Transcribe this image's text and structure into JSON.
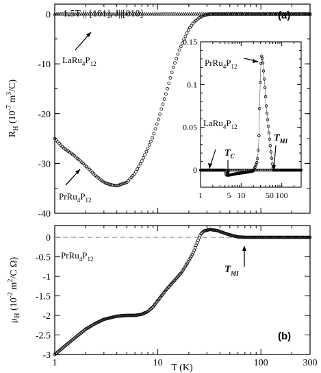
{
  "chart_data": [
    {
      "type": "scatter",
      "panel_label": "(a)",
      "annotation": "1.5T || [101], J||[010]",
      "xscale": "log",
      "xlim": [
        1,
        300
      ],
      "ylim": [
        -40,
        2
      ],
      "ylabel_main": "R",
      "ylabel_sub": "H",
      "ylabel_rest": " (10",
      "ylabel_exp1": "-7",
      "ylabel_mid": " m",
      "ylabel_exp2": "3",
      "ylabel_tail": "/C)",
      "yticks": [
        0,
        -10,
        -20,
        -30,
        -40
      ],
      "ytick_labels": [
        "0",
        "-10",
        "-20",
        "-30",
        "-40"
      ],
      "series": [
        {
          "name": "PrRu4P12",
          "label_parts": [
            "PrRu",
            "4",
            "P",
            "12"
          ],
          "marker": "circle",
          "points": [
            [
              1.0,
              -25.0
            ],
            [
              1.2,
              -26.8
            ],
            [
              1.5,
              -28.2
            ],
            [
              2.0,
              -30.5
            ],
            [
              2.5,
              -32.5
            ],
            [
              3.0,
              -33.8
            ],
            [
              3.5,
              -34.3
            ],
            [
              4.0,
              -34.5
            ],
            [
              5.0,
              -33.8
            ],
            [
              6.0,
              -32.0
            ],
            [
              7.0,
              -29.5
            ],
            [
              8.0,
              -27.0
            ],
            [
              9.0,
              -24.5
            ],
            [
              10.0,
              -21.5
            ],
            [
              12.0,
              -16.0
            ],
            [
              14.0,
              -11.0
            ],
            [
              16.0,
              -7.5
            ],
            [
              18.0,
              -5.0
            ],
            [
              20.0,
              -3.0
            ],
            [
              22.0,
              -1.8
            ],
            [
              25.0,
              -0.8
            ],
            [
              28.0,
              -0.3
            ],
            [
              32.0,
              0.0
            ],
            [
              40.0,
              0.0
            ],
            [
              60.0,
              0.0
            ],
            [
              100.0,
              0.0
            ],
            [
              200.0,
              0.0
            ],
            [
              300.0,
              0.0
            ]
          ]
        },
        {
          "name": "LaRu4P12",
          "label_parts": [
            "LaRu",
            "4",
            "P",
            "12"
          ],
          "marker": "triangle",
          "points": [
            [
              1.0,
              0.0
            ],
            [
              2.0,
              0.0
            ],
            [
              5.0,
              0.0
            ],
            [
              10.0,
              0.0
            ],
            [
              30.0,
              0.0
            ],
            [
              100.0,
              0.0
            ],
            [
              300.0,
              0.0
            ]
          ]
        }
      ],
      "inset": {
        "xscale": "log",
        "xlim": [
          1,
          300
        ],
        "ylim": [
          -0.02,
          0.15
        ],
        "yticks": [
          0,
          0.05,
          0.1,
          0.15
        ],
        "ytick_labels": [
          "0",
          "0.05",
          "0.1",
          "0.15"
        ],
        "xticks": [
          1,
          10,
          100
        ],
        "xtick_labels": [
          "1",
          "5",
          "10",
          "50",
          "100"
        ],
        "xtick_values": [
          1,
          5,
          10,
          50,
          100
        ],
        "tc_label": "T",
        "tc_sub": "C",
        "tmi_label": "T",
        "tmi_sub": "MI",
        "tc_value": 4.3,
        "tmi_value": 62,
        "series": [
          {
            "name": "PrRu4P12",
            "label_parts": [
              "PrRu",
              "4",
              "P",
              "12"
            ],
            "points": [
              [
                1.0,
                0.0
              ],
              [
                2.0,
                0.0
              ],
              [
                3.0,
                0.0
              ],
              [
                4.0,
                0.0
              ],
              [
                4.3,
                -0.006
              ],
              [
                5.0,
                -0.006
              ],
              [
                8.0,
                -0.004
              ],
              [
                12.0,
                -0.003
              ],
              [
                20.0,
                -0.001
              ],
              [
                25.0,
                0.01
              ],
              [
                27.0,
                0.03
              ],
              [
                28.0,
                0.06
              ],
              [
                29.0,
                0.09
              ],
              [
                30.0,
                0.115
              ],
              [
                31.0,
                0.13
              ],
              [
                32.0,
                0.134
              ],
              [
                34.0,
                0.128
              ],
              [
                38.0,
                0.1
              ],
              [
                42.0,
                0.072
              ],
              [
                48.0,
                0.045
              ],
              [
                54.0,
                0.022
              ],
              [
                58.0,
                0.008
              ],
              [
                62.0,
                0.0
              ],
              [
                80.0,
                0.0
              ],
              [
                150.0,
                0.0
              ],
              [
                300.0,
                0.0
              ]
            ]
          },
          {
            "name": "LaRu4P12",
            "label_parts": [
              "LaRu",
              "4",
              "P",
              "12"
            ],
            "points": [
              [
                1.0,
                0.0
              ],
              [
                2.0,
                0.0
              ],
              [
                3.0,
                0.0
              ],
              [
                4.0,
                0.0
              ],
              [
                6.0,
                0.0
              ],
              [
                10.0,
                0.0
              ],
              [
                20.0,
                0.0
              ],
              [
                40.0,
                0.0
              ],
              [
                80.0,
                0.0
              ],
              [
                150.0,
                0.0
              ],
              [
                300.0,
                0.0
              ]
            ]
          }
        ]
      }
    },
    {
      "type": "scatter",
      "panel_label": "(b)",
      "xscale": "log",
      "xlim": [
        1,
        300
      ],
      "ylim": [
        -3,
        0.3
      ],
      "xlabel": "T (K)",
      "xtick_values": [
        1,
        10,
        100,
        300
      ],
      "xtick_labels": [
        "1",
        "10",
        "100",
        "300"
      ],
      "ylabel_main": "μ",
      "ylabel_sub": "H",
      "ylabel_rest": " (10",
      "ylabel_exp1": "-2",
      "ylabel_mid": " m",
      "ylabel_exp2": "2",
      "ylabel_tail": "/C Ω)",
      "yticks": [
        0,
        -0.5,
        -1,
        -1.5,
        -2,
        -2.5,
        -3
      ],
      "ytick_labels": [
        "0",
        "-0.5",
        "-1",
        "-1.5",
        "-2",
        "-2.5",
        "-3"
      ],
      "tmi_label": "T",
      "tmi_sub": "MI",
      "tmi_value": 62,
      "reference_line": 0,
      "series": [
        {
          "name": "PrRu4P12",
          "label_parts": [
            "PrRu",
            "4",
            "P",
            "12"
          ],
          "points": [
            [
              1.0,
              -3.0
            ],
            [
              1.3,
              -2.75
            ],
            [
              1.7,
              -2.5
            ],
            [
              2.0,
              -2.35
            ],
            [
              2.5,
              -2.2
            ],
            [
              3.0,
              -2.1
            ],
            [
              4.0,
              -2.02
            ],
            [
              5.0,
              -2.0
            ],
            [
              6.0,
              -2.0
            ],
            [
              7.0,
              -1.97
            ],
            [
              8.0,
              -1.9
            ],
            [
              9.0,
              -1.78
            ],
            [
              10.0,
              -1.62
            ],
            [
              12.0,
              -1.35
            ],
            [
              14.0,
              -1.15
            ],
            [
              17.0,
              -0.9
            ],
            [
              20.0,
              -0.6
            ],
            [
              22.0,
              -0.4
            ],
            [
              24.0,
              -0.15
            ],
            [
              26.0,
              0.08
            ],
            [
              28.0,
              0.16
            ],
            [
              32.0,
              0.2
            ],
            [
              38.0,
              0.17
            ],
            [
              45.0,
              0.1
            ],
            [
              52.0,
              0.05
            ],
            [
              60.0,
              0.01
            ],
            [
              70.0,
              0.0
            ],
            [
              100.0,
              0.0
            ],
            [
              200.0,
              0.0
            ],
            [
              300.0,
              0.0
            ]
          ]
        }
      ]
    }
  ]
}
